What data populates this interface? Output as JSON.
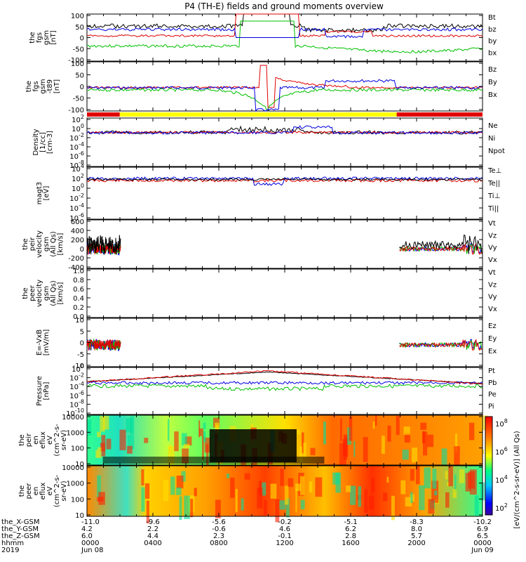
{
  "title": "P4 (TH-E) fields and ground moments overview",
  "colors": {
    "black": "#000000",
    "red": "#e00000",
    "green": "#00c000",
    "blue": "#0000e0",
    "yellow": "#ffff00"
  },
  "chart_data": [
    {
      "type": "line",
      "panel": "fgs",
      "ylabel": [
        "the",
        "fgs",
        "gsm",
        "[nT]"
      ],
      "yticks": [
        "100",
        "50",
        "0",
        "-50",
        "-100"
      ],
      "ylim": [
        -100,
        100
      ],
      "legend": [
        {
          "label": "Bt",
          "color": "black"
        },
        {
          "label": "bz",
          "color": "red"
        },
        {
          "label": "by",
          "color": "green"
        },
        {
          "label": "bx",
          "color": "blue"
        }
      ]
    },
    {
      "type": "line",
      "panel": "fgs_gsm_minus_t89",
      "ylabel": [
        "the",
        "fgs",
        "gsm",
        "-t89",
        "[nT]"
      ],
      "yticks": [
        "100",
        "50",
        "0",
        "-50",
        "-100"
      ],
      "ylim": [
        -120,
        110
      ],
      "legend": [
        {
          "label": "Bz",
          "color": "red"
        },
        {
          "label": "By",
          "color": "green"
        },
        {
          "label": "Bx",
          "color": "blue"
        }
      ]
    },
    {
      "type": "bar",
      "panel": "mode_bar",
      "segments": [
        {
          "from": 0,
          "to": 0.083,
          "color": "red"
        },
        {
          "from": 0.083,
          "to": 0.783,
          "color": "yellow"
        },
        {
          "from": 0.783,
          "to": 1,
          "color": "red"
        }
      ]
    },
    {
      "type": "line",
      "panel": "density",
      "ylabel": [
        "Density",
        "[1/cc]",
        "[cm-3]"
      ],
      "yticks": [
        "10^2",
        "10^0",
        "10^-2",
        "10^-4",
        "10^-6",
        "10^-8"
      ],
      "log": true,
      "legend": [
        {
          "label": "Ne",
          "color": "red"
        },
        {
          "label": "Ni",
          "color": "black"
        },
        {
          "label": "Npot",
          "color": "blue"
        }
      ]
    },
    {
      "type": "line",
      "panel": "temperature",
      "ylabel": [
        "magt3",
        "[eV]"
      ],
      "yticks": [
        "10^4",
        "10^2",
        "10^0",
        "10^-2",
        "10^-4",
        "10^-6"
      ],
      "log": true,
      "legend": [
        {
          "label": "Te⊥",
          "color": "red"
        },
        {
          "label": "Te||",
          "color": "black"
        },
        {
          "label": "Ti⊥",
          "color": "green"
        },
        {
          "label": "Ti||",
          "color": "green"
        }
      ]
    },
    {
      "type": "line",
      "panel": "peir_velocity",
      "ylabel": [
        "the",
        "peir",
        "velocity",
        "gsm",
        "(All Qs)",
        "[km/s]"
      ],
      "yticks": [
        "600",
        "400",
        "200",
        "0",
        "-200",
        "-400"
      ],
      "ylim": [
        -400,
        600
      ],
      "legend": [
        {
          "label": "Vt",
          "color": "black"
        },
        {
          "label": "Vz",
          "color": "red"
        },
        {
          "label": "Vy",
          "color": "green"
        },
        {
          "label": "Vx",
          "color": "blue"
        }
      ]
    },
    {
      "type": "line",
      "panel": "peer_velocity",
      "ylabel": [
        "the",
        "peer",
        "velocity",
        "gsm",
        "(All Qs)",
        "[km/s]"
      ],
      "yticks": [
        "1.0",
        "0.8",
        "0.6",
        "0.4",
        "0.2",
        "0.0"
      ],
      "ylim": [
        0,
        1
      ],
      "legend": [
        {
          "label": "Vt",
          "color": "black"
        },
        {
          "label": "Vz",
          "color": "red"
        },
        {
          "label": "Vy",
          "color": "green"
        },
        {
          "label": "Vx",
          "color": "blue"
        }
      ]
    },
    {
      "type": "line",
      "panel": "e_field",
      "ylabel": [
        "E=-VxB",
        "[mV/m]"
      ],
      "yticks": [
        "10",
        "5",
        "0",
        "-5",
        "-10"
      ],
      "ylim": [
        -10,
        12
      ],
      "legend": [
        {
          "label": "Ez",
          "color": "red"
        },
        {
          "label": "Ey",
          "color": "green"
        },
        {
          "label": "Ex",
          "color": "blue"
        }
      ]
    },
    {
      "type": "line",
      "panel": "pressure",
      "ylabel": [
        "Pressure",
        "[nPa]"
      ],
      "yticks": [
        "10^0",
        "10^-2",
        "10^-4",
        "10^-6",
        "10^-8",
        "10^-10"
      ],
      "log": true,
      "legend": [
        {
          "label": "Pt",
          "color": "black"
        },
        {
          "label": "Pb",
          "color": "red"
        },
        {
          "label": "Pe",
          "color": "green"
        },
        {
          "label": "Pi",
          "color": "blue"
        }
      ]
    },
    {
      "type": "heatmap",
      "panel": "peir_spectrogram",
      "ylabel": [
        "the",
        "peir",
        "en",
        "eflux",
        "eV",
        "(cm^2-s-",
        "sr-eV)"
      ],
      "yticks": [
        "10000",
        "1000",
        "100",
        "10"
      ],
      "log": true
    },
    {
      "type": "heatmap",
      "panel": "peer_spectrogram",
      "ylabel": [
        "the",
        "peer",
        "en",
        "eflux",
        "eV",
        "(cm^2-s-",
        "sr-eV)"
      ],
      "yticks": [
        "10000",
        "1000",
        "100",
        "10"
      ],
      "log": true
    },
    {
      "type": "colorbar",
      "label": "[eV/(cm^2-s-sr-eV)] (All Qs)",
      "ticks": [
        "10^8",
        "10^6",
        "10^4",
        "10^2"
      ]
    }
  ],
  "xaxis": {
    "rows": [
      {
        "label": "the_X-GSM",
        "values": [
          "-11.0",
          "-9.6",
          "-5.6",
          "-0.2",
          "-5.1",
          "-8.3",
          "-10.2"
        ]
      },
      {
        "label": "the_Y-GSM",
        "values": [
          "4.2",
          "2.2",
          "-0.6",
          "4.6",
          "6.2",
          "8.0",
          "6.9"
        ]
      },
      {
        "label": "the_Z-GSM",
        "values": [
          "6.0",
          "4.4",
          "2.3",
          "-0.1",
          "2.8",
          "5.7",
          "6.5"
        ]
      },
      {
        "label": "hhmm",
        "values": [
          "0000",
          "0400",
          "0800",
          "1200",
          "1600",
          "2000",
          "0000"
        ]
      },
      {
        "label": "2019",
        "values": [
          "Jun 08",
          "",
          "",
          "",
          "",
          "",
          "Jun 09"
        ]
      }
    ]
  }
}
